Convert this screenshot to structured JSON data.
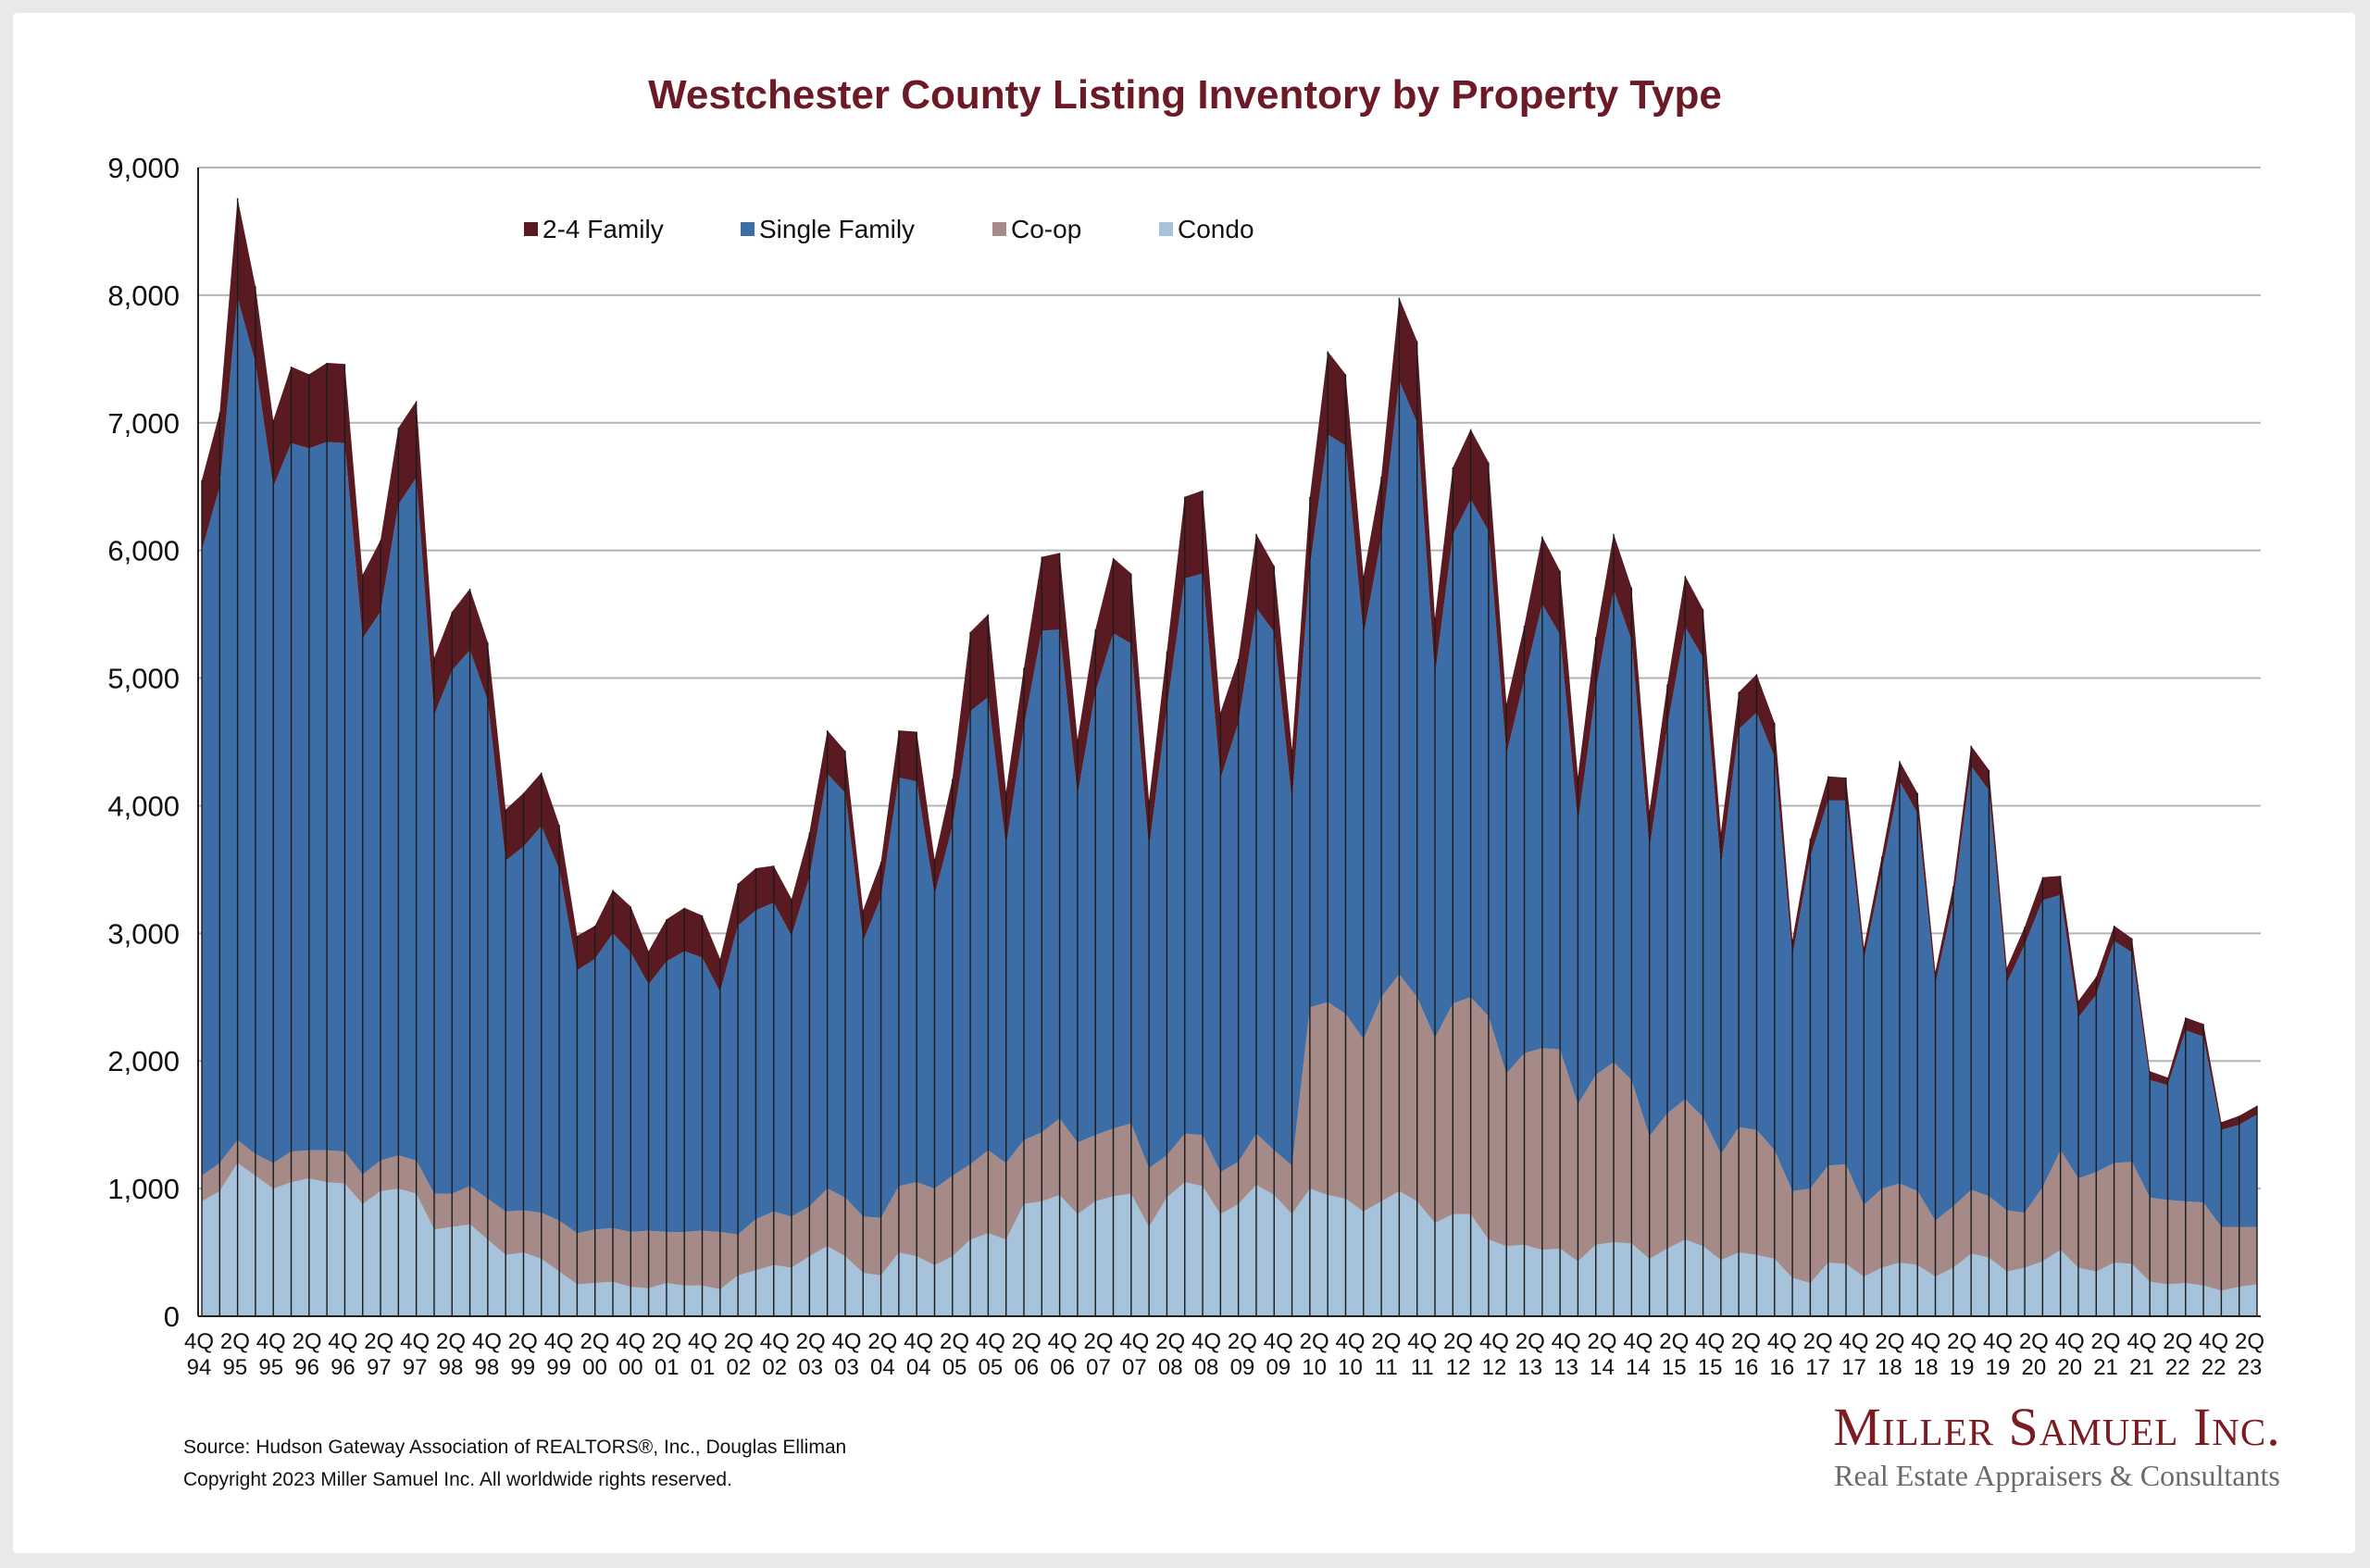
{
  "chart_data": {
    "type": "area",
    "title": "Westchester County Listing Inventory by Property Type",
    "stacked": true,
    "xlabel": "",
    "ylabel": "",
    "ylim": [
      0,
      9000
    ],
    "y_ticks": [
      "0",
      "1,000",
      "2,000",
      "3,000",
      "4,000",
      "5,000",
      "6,000",
      "7,000",
      "8,000",
      "9,000"
    ],
    "y_tick_values": [
      0,
      1000,
      2000,
      3000,
      4000,
      5000,
      6000,
      7000,
      8000,
      9000
    ],
    "grid": true,
    "legend_position": "top-left",
    "x_tick_labels": [
      {
        "q": "4Q",
        "yr": "94"
      },
      {
        "q": "2Q",
        "yr": "95"
      },
      {
        "q": "4Q",
        "yr": "95"
      },
      {
        "q": "2Q",
        "yr": "96"
      },
      {
        "q": "4Q",
        "yr": "96"
      },
      {
        "q": "2Q",
        "yr": "97"
      },
      {
        "q": "4Q",
        "yr": "97"
      },
      {
        "q": "2Q",
        "yr": "98"
      },
      {
        "q": "4Q",
        "yr": "98"
      },
      {
        "q": "2Q",
        "yr": "99"
      },
      {
        "q": "4Q",
        "yr": "99"
      },
      {
        "q": "2Q",
        "yr": "00"
      },
      {
        "q": "4Q",
        "yr": "00"
      },
      {
        "q": "2Q",
        "yr": "01"
      },
      {
        "q": "4Q",
        "yr": "01"
      },
      {
        "q": "2Q",
        "yr": "02"
      },
      {
        "q": "4Q",
        "yr": "02"
      },
      {
        "q": "2Q",
        "yr": "03"
      },
      {
        "q": "4Q",
        "yr": "03"
      },
      {
        "q": "2Q",
        "yr": "04"
      },
      {
        "q": "4Q",
        "yr": "04"
      },
      {
        "q": "2Q",
        "yr": "05"
      },
      {
        "q": "4Q",
        "yr": "05"
      },
      {
        "q": "2Q",
        "yr": "06"
      },
      {
        "q": "4Q",
        "yr": "06"
      },
      {
        "q": "2Q",
        "yr": "07"
      },
      {
        "q": "4Q",
        "yr": "07"
      },
      {
        "q": "2Q",
        "yr": "08"
      },
      {
        "q": "4Q",
        "yr": "08"
      },
      {
        "q": "2Q",
        "yr": "09"
      },
      {
        "q": "4Q",
        "yr": "09"
      },
      {
        "q": "2Q",
        "yr": "10"
      },
      {
        "q": "4Q",
        "yr": "10"
      },
      {
        "q": "2Q",
        "yr": "11"
      },
      {
        "q": "4Q",
        "yr": "11"
      },
      {
        "q": "2Q",
        "yr": "12"
      },
      {
        "q": "4Q",
        "yr": "12"
      },
      {
        "q": "2Q",
        "yr": "13"
      },
      {
        "q": "4Q",
        "yr": "13"
      },
      {
        "q": "2Q",
        "yr": "14"
      },
      {
        "q": "4Q",
        "yr": "14"
      },
      {
        "q": "2Q",
        "yr": "15"
      },
      {
        "q": "4Q",
        "yr": "15"
      },
      {
        "q": "2Q",
        "yr": "16"
      },
      {
        "q": "4Q",
        "yr": "16"
      },
      {
        "q": "2Q",
        "yr": "17"
      },
      {
        "q": "4Q",
        "yr": "17"
      },
      {
        "q": "2Q",
        "yr": "18"
      },
      {
        "q": "4Q",
        "yr": "18"
      },
      {
        "q": "2Q",
        "yr": "19"
      },
      {
        "q": "4Q",
        "yr": "19"
      },
      {
        "q": "2Q",
        "yr": "20"
      },
      {
        "q": "4Q",
        "yr": "20"
      },
      {
        "q": "2Q",
        "yr": "21"
      },
      {
        "q": "4Q",
        "yr": "21"
      },
      {
        "q": "2Q",
        "yr": "22"
      },
      {
        "q": "4Q",
        "yr": "22"
      },
      {
        "q": "2Q",
        "yr": "23"
      }
    ],
    "series": [
      {
        "name": "Condo",
        "color": "#a6c3db",
        "values": [
          900,
          980,
          1200,
          1100,
          1000,
          1050,
          1080,
          1050,
          1040,
          880,
          980,
          1000,
          960,
          680,
          700,
          720,
          600,
          480,
          500,
          450,
          350,
          250,
          260,
          270,
          230,
          220,
          260,
          240,
          240,
          210,
          320,
          360,
          400,
          380,
          470,
          550,
          470,
          340,
          320,
          500,
          470,
          400,
          470,
          600,
          650,
          600,
          880,
          900,
          950,
          800,
          900,
          940,
          960,
          700,
          930,
          1050,
          1020,
          800,
          880,
          1030,
          950,
          800,
          1000,
          950,
          920,
          820,
          900,
          980,
          900,
          730,
          800,
          800,
          600,
          550,
          560,
          520,
          530,
          430,
          560,
          580,
          570,
          450,
          530,
          600,
          550,
          440,
          500,
          480,
          450,
          300,
          260,
          420,
          410,
          310,
          380,
          420,
          400,
          310,
          380,
          490,
          460,
          350,
          380,
          430,
          520,
          380,
          350,
          420,
          410,
          270,
          250,
          260,
          240,
          200,
          230,
          250
        ]
      },
      {
        "name": "Co-op",
        "color": "#a58a88",
        "values": [
          200,
          220,
          180,
          170,
          200,
          240,
          220,
          250,
          250,
          230,
          240,
          260,
          260,
          280,
          260,
          300,
          320,
          340,
          330,
          360,
          400,
          400,
          420,
          420,
          430,
          450,
          400,
          420,
          430,
          450,
          320,
          400,
          420,
          400,
          390,
          450,
          460,
          440,
          450,
          520,
          580,
          600,
          630,
          590,
          650,
          600,
          500,
          540,
          600,
          560,
          520,
          530,
          550,
          460,
          330,
          380,
          400,
          330,
          330,
          400,
          350,
          380,
          1420,
          1510,
          1450,
          1350,
          1600,
          1700,
          1600,
          1450,
          1650,
          1700,
          1750,
          1350,
          1500,
          1580,
          1560,
          1230,
          1330,
          1410,
          1280,
          960,
          1060,
          1100,
          1010,
          830,
          980,
          980,
          850,
          680,
          740,
          760,
          780,
          560,
          620,
          620,
          580,
          440,
          480,
          500,
          480,
          480,
          430,
          580,
          780,
          700,
          780,
          780,
          800,
          660,
          660,
          640,
          650,
          500,
          470,
          450
        ]
      },
      {
        "name": "Single Family",
        "color": "#3d6da7",
        "values": [
          4900,
          5300,
          6600,
          6200,
          5300,
          5550,
          5500,
          5550,
          5550,
          4200,
          4300,
          5100,
          5350,
          3750,
          4100,
          4200,
          3900,
          2750,
          2850,
          3030,
          2750,
          2060,
          2120,
          2310,
          2190,
          1930,
          2120,
          2200,
          2140,
          1880,
          2420,
          2420,
          2420,
          2200,
          2580,
          3250,
          3170,
          2160,
          2510,
          3200,
          3140,
          2300,
          2740,
          3550,
          3550,
          2480,
          3240,
          3930,
          3830,
          2720,
          3470,
          3880,
          3760,
          2500,
          3500,
          4350,
          4400,
          3080,
          3440,
          4120,
          4060,
          2850,
          3450,
          4450,
          4450,
          3160,
          3600,
          4650,
          4500,
          2840,
          3670,
          3900,
          3800,
          2500,
          2930,
          3480,
          3250,
          2200,
          3010,
          3700,
          3450,
          2250,
          3030,
          3700,
          3600,
          2250,
          3120,
          3270,
          3080,
          1840,
          2600,
          2860,
          2850,
          1920,
          2480,
          3150,
          2960,
          1850,
          2390,
          3320,
          3180,
          1780,
          2100,
          2250,
          2000,
          1260,
          1390,
          1740,
          1640,
          920,
          900,
          1340,
          1300,
          760,
          800,
          880
        ]
      },
      {
        "name": "2-4 Family",
        "color": "#5a1a22",
        "values": [
          550,
          580,
          780,
          600,
          520,
          600,
          580,
          620,
          620,
          500,
          560,
          600,
          600,
          450,
          460,
          480,
          460,
          400,
          420,
          420,
          350,
          270,
          260,
          340,
          360,
          260,
          330,
          340,
          330,
          260,
          330,
          330,
          290,
          290,
          350,
          340,
          330,
          240,
          280,
          370,
          390,
          280,
          370,
          620,
          650,
          430,
          460,
          580,
          600,
          440,
          490,
          590,
          550,
          380,
          450,
          640,
          650,
          520,
          500,
          580,
          520,
          410,
          550,
          650,
          560,
          470,
          480,
          650,
          640,
          450,
          530,
          550,
          540,
          400,
          420,
          530,
          500,
          370,
          420,
          440,
          410,
          300,
          330,
          400,
          380,
          270,
          290,
          300,
          270,
          130,
          140,
          190,
          180,
          100,
          120,
          160,
          160,
          100,
          120,
          160,
          160,
          120,
          140,
          180,
          150,
          130,
          140,
          120,
          110,
          70,
          60,
          100,
          100,
          60,
          70,
          70
        ]
      }
    ]
  },
  "footer": {
    "source": "Source: Hudson Gateway Association of REALTORS®, Inc., Douglas Elliman",
    "copyright": "Copyright 2023 Miller Samuel Inc.  All worldwide rights reserved."
  },
  "logo": {
    "name": "Miller Samuel Inc.",
    "tagline": "Real Estate Appraisers & Consultants"
  },
  "colors": {
    "title": "#6b1a26",
    "grid": "#b5b5b5",
    "divider": "#1a1a1a"
  }
}
